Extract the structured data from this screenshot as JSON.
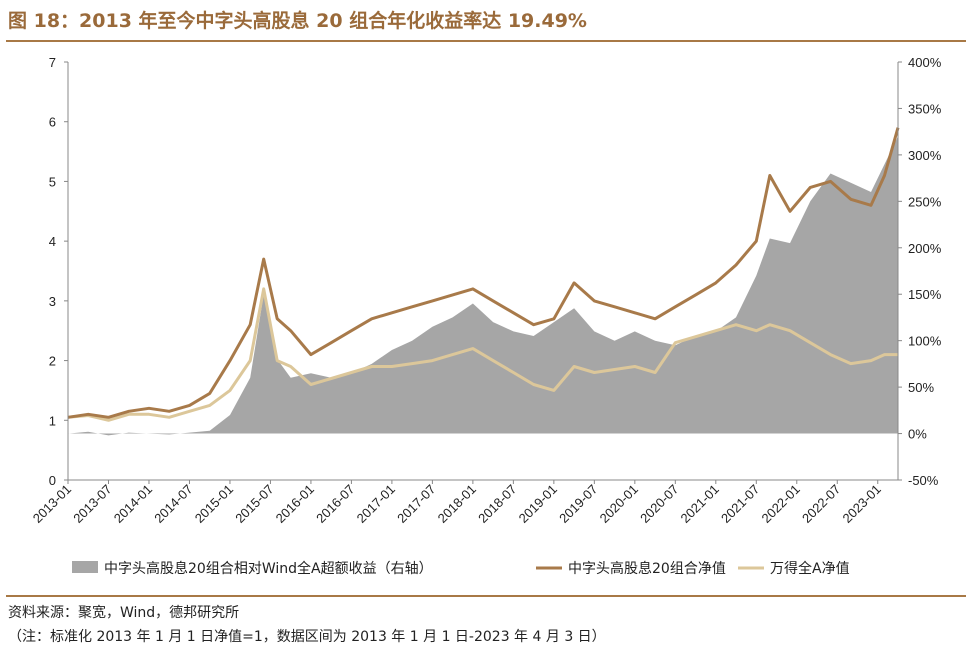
{
  "title": "图 18：2013 年至今中字头高股息 20 组合年化收益率达 19.49%",
  "source": "资料来源：聚宽，Wind，德邦研究所",
  "note": "（注：标准化 2013 年 1 月 1 日净值=1，数据区间为 2013 年 1 月 1 日-2023 年 4 月 3 日）",
  "colors": {
    "accent": "#a87946",
    "excess": "#a6a6a6",
    "portfolio": "#a87a4a",
    "wind": "#dcc79a"
  },
  "chart_data": {
    "type": "line",
    "grid": false,
    "legend_position": "bottom",
    "x_ticks": [
      "2013-01",
      "2013-07",
      "2014-01",
      "2014-07",
      "2015-01",
      "2015-07",
      "2016-01",
      "2016-07",
      "2017-01",
      "2017-07",
      "2018-01",
      "2018-07",
      "2019-01",
      "2019-07",
      "2020-01",
      "2020-07",
      "2021-01",
      "2021-07",
      "2022-01",
      "2022-07",
      "2023-01"
    ],
    "y_left": {
      "min": 0,
      "max": 7,
      "ticks": [
        "0",
        "1",
        "2",
        "3",
        "4",
        "5",
        "6",
        "7"
      ]
    },
    "y_right": {
      "min": -50,
      "max": 400,
      "ticks": [
        "-50%",
        "0%",
        "50%",
        "100%",
        "150%",
        "200%",
        "250%",
        "300%",
        "350%",
        "400%"
      ]
    },
    "x": [
      "2013-01",
      "2013-04",
      "2013-07",
      "2013-10",
      "2014-01",
      "2014-04",
      "2014-07",
      "2014-10",
      "2015-01",
      "2015-04",
      "2015-06",
      "2015-08",
      "2015-10",
      "2016-01",
      "2016-04",
      "2016-07",
      "2016-10",
      "2017-01",
      "2017-04",
      "2017-07",
      "2017-10",
      "2018-01",
      "2018-04",
      "2018-07",
      "2018-10",
      "2019-01",
      "2019-04",
      "2019-07",
      "2019-10",
      "2020-01",
      "2020-04",
      "2020-07",
      "2020-10",
      "2021-01",
      "2021-04",
      "2021-07",
      "2021-09",
      "2021-12",
      "2022-03",
      "2022-06",
      "2022-09",
      "2022-12",
      "2023-02",
      "2023-04"
    ],
    "series": [
      {
        "name": "中字头高股息20组合相对Wind全A超额收益（右轴）",
        "axis": "right",
        "type": "area",
        "unit": "%",
        "values": [
          0,
          2,
          -2,
          1,
          0,
          -1,
          1,
          3,
          20,
          60,
          150,
          80,
          60,
          65,
          60,
          65,
          75,
          90,
          100,
          115,
          125,
          140,
          120,
          110,
          105,
          120,
          135,
          110,
          100,
          110,
          100,
          95,
          105,
          110,
          125,
          170,
          210,
          205,
          250,
          280,
          270,
          260,
          290,
          320
        ]
      },
      {
        "name": "中字头高股息20组合净值",
        "axis": "left",
        "type": "line",
        "values": [
          1.05,
          1.1,
          1.05,
          1.15,
          1.2,
          1.15,
          1.25,
          1.45,
          2.0,
          2.6,
          3.7,
          2.7,
          2.5,
          2.1,
          2.3,
          2.5,
          2.7,
          2.8,
          2.9,
          3.0,
          3.1,
          3.2,
          3.0,
          2.8,
          2.6,
          2.7,
          3.3,
          3.0,
          2.9,
          2.8,
          2.7,
          2.9,
          3.1,
          3.3,
          3.6,
          4.0,
          5.1,
          4.5,
          4.9,
          5.0,
          4.7,
          4.6,
          5.1,
          5.9
        ]
      },
      {
        "name": "万得全A净值",
        "axis": "left",
        "type": "line",
        "values": [
          1.05,
          1.08,
          1.0,
          1.1,
          1.1,
          1.05,
          1.15,
          1.25,
          1.5,
          2.0,
          3.2,
          2.0,
          1.9,
          1.6,
          1.7,
          1.8,
          1.9,
          1.9,
          1.95,
          2.0,
          2.1,
          2.2,
          2.0,
          1.8,
          1.6,
          1.5,
          1.9,
          1.8,
          1.85,
          1.9,
          1.8,
          2.3,
          2.4,
          2.5,
          2.6,
          2.5,
          2.6,
          2.5,
          2.3,
          2.1,
          1.95,
          2.0,
          2.1,
          2.1
        ]
      }
    ]
  }
}
